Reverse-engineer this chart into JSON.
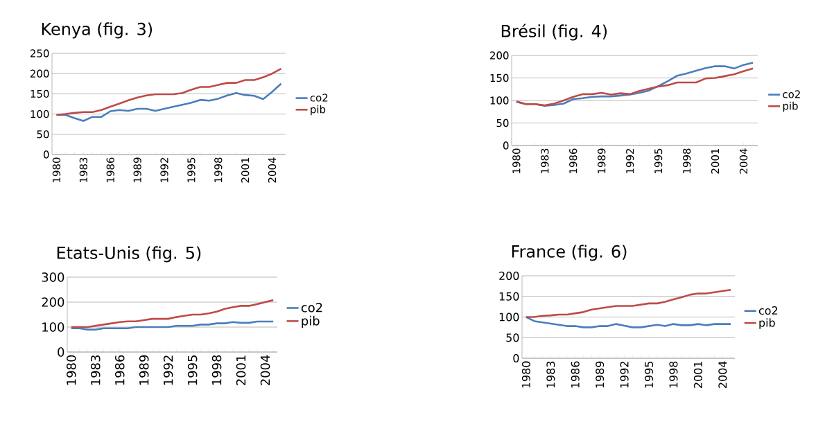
{
  "chart_data": [
    {
      "type": "line",
      "title": "Kenya (fig. 3)",
      "categories": [
        "1980",
        null,
        null,
        "1983",
        null,
        null,
        "1986",
        null,
        null,
        "1989",
        null,
        null,
        "1992",
        null,
        null,
        "1995",
        null,
        null,
        "1998",
        null,
        null,
        "2001",
        null,
        null,
        "2004",
        null
      ],
      "series": [
        {
          "name": "co2",
          "color": "#4a7ebb",
          "values": [
            98,
            98,
            90,
            83,
            93,
            93,
            107,
            110,
            108,
            113,
            113,
            108,
            113,
            118,
            123,
            128,
            135,
            133,
            138,
            146,
            152,
            147,
            145,
            137,
            155,
            175
          ]
        },
        {
          "name": "pib",
          "color": "#be4b48",
          "values": [
            98,
            100,
            103,
            105,
            105,
            110,
            118,
            126,
            134,
            141,
            146,
            149,
            149,
            149,
            152,
            160,
            167,
            167,
            172,
            177,
            177,
            184,
            184,
            191,
            200,
            212
          ]
        }
      ],
      "ylim": [
        0,
        250
      ],
      "yticks": [
        0,
        50,
        100,
        150,
        200,
        250
      ],
      "grid": "y",
      "legend": "right"
    },
    {
      "type": "line",
      "title": "Brésil  (fig. 4)",
      "categories": [
        "1980",
        null,
        null,
        "1983",
        null,
        null,
        "1986",
        null,
        null,
        "1989",
        null,
        null,
        "1992",
        null,
        null,
        "1995",
        null,
        null,
        "1998",
        null,
        null,
        "2001",
        null,
        null,
        "2004",
        null
      ],
      "series": [
        {
          "name": "co2",
          "color": "#4a7ebb",
          "values": [
            97,
            92,
            92,
            88,
            90,
            93,
            103,
            105,
            108,
            109,
            109,
            111,
            113,
            117,
            122,
            132,
            143,
            155,
            160,
            166,
            172,
            176,
            176,
            171,
            179,
            184
          ]
        },
        {
          "name": "pib",
          "color": "#be4b48",
          "values": [
            98,
            92,
            92,
            89,
            93,
            100,
            108,
            114,
            114,
            117,
            113,
            116,
            114,
            121,
            126,
            131,
            134,
            140,
            140,
            140,
            149,
            150,
            154,
            158,
            165,
            171
          ]
        }
      ],
      "ylim": [
        0,
        200
      ],
      "yticks": [
        0,
        50,
        100,
        150,
        200
      ],
      "grid": "y",
      "legend": "right"
    },
    {
      "type": "line",
      "title": "Etats-Unis (fig. 5)",
      "categories": [
        "1980",
        null,
        null,
        "1983",
        null,
        null,
        "1986",
        null,
        null,
        "1989",
        null,
        null,
        "1992",
        null,
        null,
        "1995",
        null,
        null,
        "1998",
        null,
        null,
        "2001",
        null,
        null,
        "2004",
        null
      ],
      "series": [
        {
          "name": "co2",
          "color": "#4a7ebb",
          "values": [
            95,
            95,
            90,
            90,
            95,
            95,
            95,
            95,
            100,
            100,
            100,
            100,
            100,
            105,
            105,
            105,
            110,
            110,
            115,
            115,
            120,
            117,
            117,
            122,
            122,
            122
          ]
        },
        {
          "name": "pib",
          "color": "#be4b48",
          "values": [
            100,
            100,
            100,
            105,
            110,
            115,
            120,
            123,
            123,
            128,
            133,
            133,
            133,
            140,
            145,
            150,
            150,
            155,
            162,
            173,
            180,
            185,
            185,
            192,
            200,
            208
          ]
        }
      ],
      "ylim": [
        0,
        300
      ],
      "yticks": [
        0,
        100,
        200,
        300
      ],
      "grid": "y",
      "legend": "right"
    },
    {
      "type": "line",
      "title": "France (fig. 6)",
      "categories": [
        "1980",
        null,
        null,
        "1983",
        null,
        null,
        "1986",
        null,
        null,
        "1989",
        null,
        null,
        "1992",
        null,
        null,
        "1995",
        null,
        null,
        "1998",
        null,
        null,
        "2001",
        null,
        null,
        "2004",
        null
      ],
      "series": [
        {
          "name": "co2",
          "color": "#4a7ebb",
          "values": [
            100,
            90,
            87,
            84,
            81,
            78,
            78,
            75,
            75,
            78,
            78,
            83,
            79,
            75,
            75,
            78,
            81,
            78,
            83,
            80,
            80,
            83,
            80,
            83,
            83,
            83
          ]
        },
        {
          "name": "pib",
          "color": "#be4b48",
          "values": [
            100,
            100,
            103,
            104,
            106,
            106,
            109,
            112,
            118,
            121,
            124,
            127,
            127,
            127,
            130,
            133,
            133,
            137,
            143,
            148,
            154,
            157,
            157,
            160,
            163,
            166
          ]
        }
      ],
      "ylim": [
        0,
        200
      ],
      "yticks": [
        0,
        50,
        100,
        150,
        200
      ],
      "grid": "y",
      "legend": "right"
    }
  ]
}
